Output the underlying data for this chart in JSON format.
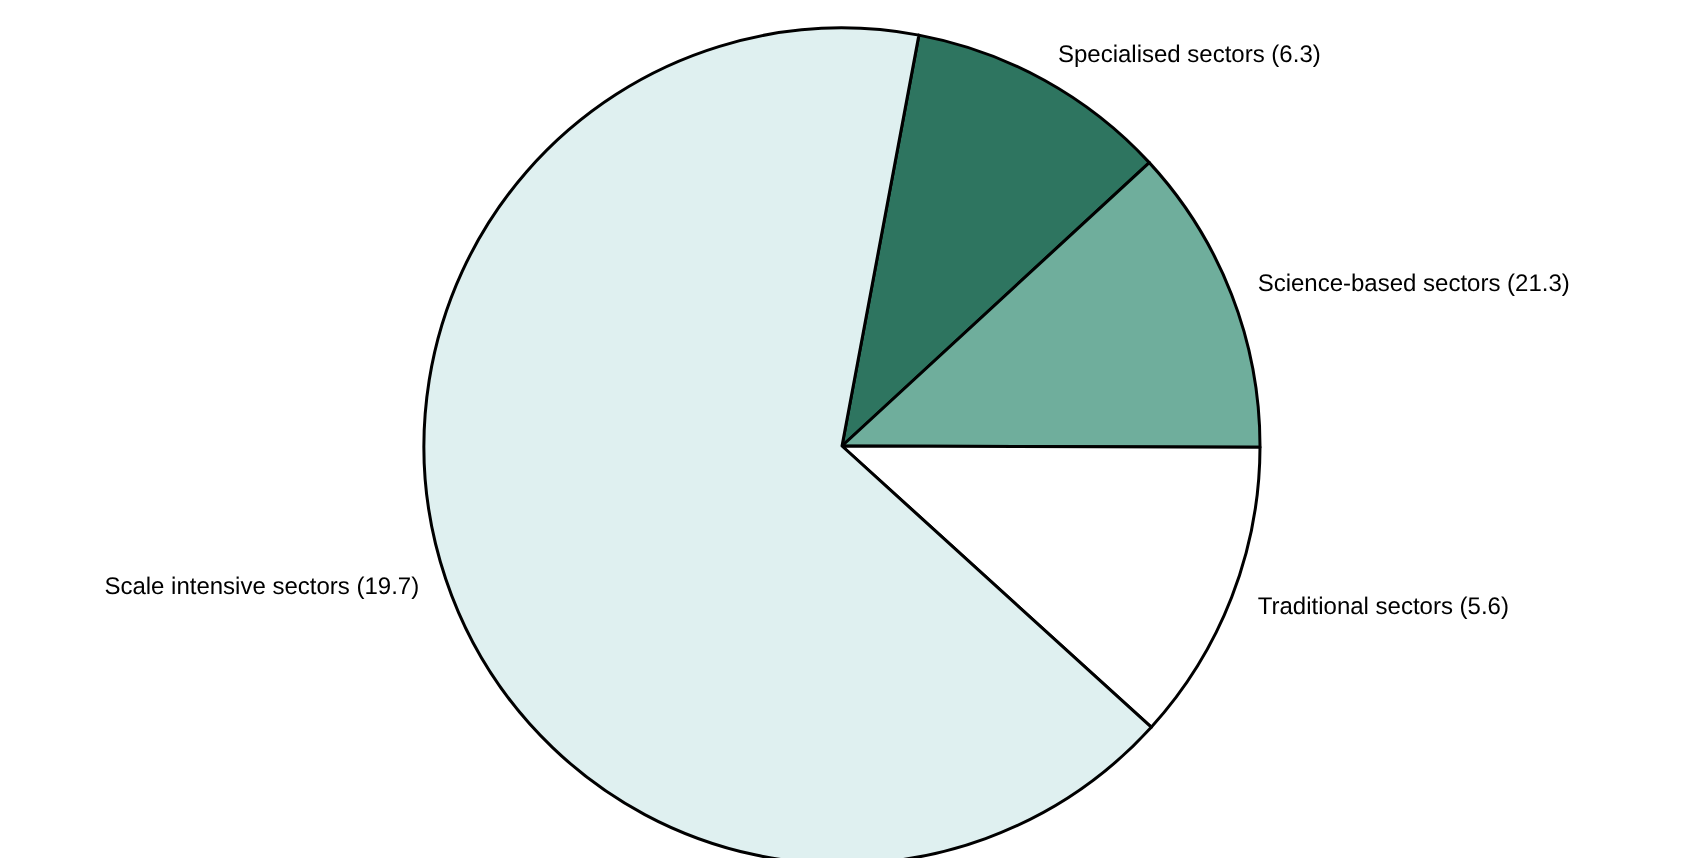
{
  "chart_data": {
    "type": "pie",
    "categories": [
      "Specialised sectors (6.3)",
      "Science-based sectors (21.3)",
      "Traditional sectors (5.6)",
      "Scale intensive sectors (19.7)"
    ],
    "values": [
      10.2,
      11.9,
      11.7,
      66.2
    ],
    "colors": [
      "#2e7560",
      "#6fae9c",
      "#ffffff",
      "#dff0f0"
    ]
  }
}
